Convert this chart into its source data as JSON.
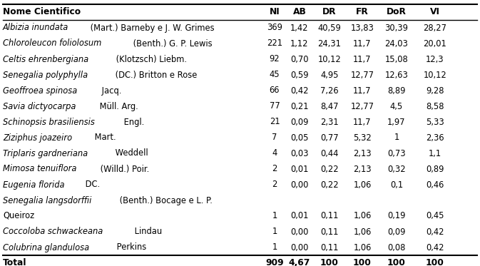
{
  "columns": [
    "Nome Cientifico",
    "NI",
    "AB",
    "DR",
    "FR",
    "DoR",
    "VI"
  ],
  "rows": [
    {
      "italic": "Albizia inundata",
      "plain": " (Mart.) Barneby e J. W. Grimes",
      "vals": [
        "369",
        "1,42",
        "40,59",
        "13,83",
        "30,39",
        "28,27"
      ]
    },
    {
      "italic": "Chloroleucon foliolosum",
      "plain": " (Benth.) G. P. Lewis",
      "vals": [
        "221",
        "1,12",
        "24,31",
        "11,7",
        "24,03",
        "20,01"
      ]
    },
    {
      "italic": "Celtis ehrenbergiana",
      "plain": " (Klotzsch) Liebm.",
      "vals": [
        "92",
        "0,70",
        "10,12",
        "11,7",
        "15,08",
        "12,3"
      ]
    },
    {
      "italic": "Senegalia polyphylla",
      "plain": " (DC.) Britton e Rose",
      "vals": [
        "45",
        "0,59",
        "4,95",
        "12,77",
        "12,63",
        "10,12"
      ]
    },
    {
      "italic": "Geoffroea spinosa",
      "plain": " Jacq.",
      "vals": [
        "66",
        "0,42",
        "7,26",
        "11,7",
        "8,89",
        "9,28"
      ]
    },
    {
      "italic": "Savia dictyocarpa",
      "plain": " Müll. Arg.",
      "vals": [
        "77",
        "0,21",
        "8,47",
        "12,77",
        "4,5",
        "8,58"
      ]
    },
    {
      "italic": "Schinopsis brasiliensis",
      "plain": " Engl.",
      "vals": [
        "21",
        "0,09",
        "2,31",
        "11,7",
        "1,97",
        "5,33"
      ]
    },
    {
      "italic": "Ziziphus joazeiro",
      "plain": " Mart.",
      "vals": [
        "7",
        "0,05",
        "0,77",
        "5,32",
        "1",
        "2,36"
      ]
    },
    {
      "italic": "Triplaris gardneriana",
      "plain": " Weddell",
      "vals": [
        "4",
        "0,03",
        "0,44",
        "2,13",
        "0,73",
        "1,1"
      ]
    },
    {
      "italic": "Mimosa tenuiflora",
      "plain": " (Willd.) Poir.",
      "vals": [
        "2",
        "0,01",
        "0,22",
        "2,13",
        "0,32",
        "0,89"
      ]
    },
    {
      "italic": "Eugenia florida",
      "plain": " DC.",
      "vals": [
        "2",
        "0,00",
        "0,22",
        "1,06",
        "0,1",
        "0,46"
      ]
    },
    {
      "italic": "Senegalia langsdorffii",
      "plain": " (Benth.) Bocage e L. P.",
      "plain2": "Queiroz",
      "vals": [
        "1",
        "0,01",
        "0,11",
        "1,06",
        "0,19",
        "0,45"
      ],
      "two_line": true
    },
    {
      "italic": "Coccoloba schwackeana",
      "plain": " Lindau",
      "vals": [
        "1",
        "0,00",
        "0,11",
        "1,06",
        "0,09",
        "0,42"
      ]
    },
    {
      "italic": "Colubrina glandulosa",
      "plain": " Perkins",
      "vals": [
        "1",
        "0,00",
        "0,11",
        "1,06",
        "0,08",
        "0,42"
      ]
    }
  ],
  "total_row": [
    "Total",
    "909",
    "4,67",
    "100",
    "100",
    "100",
    "100"
  ],
  "bg_color": "#ffffff",
  "text_color": "#000000",
  "font_size": 8.3,
  "header_font_size": 8.8,
  "fig_width": 6.73,
  "fig_height": 3.73,
  "dpi": 100
}
